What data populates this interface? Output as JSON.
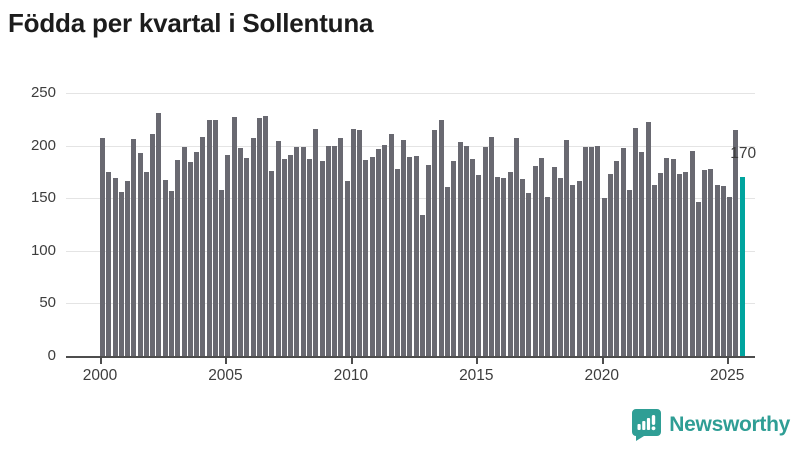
{
  "title": "Födda per kvartal i Sollentuna",
  "branding": {
    "logo_text": "Newsworthy",
    "logo_color": "#2f9e95"
  },
  "chart_data": {
    "type": "bar",
    "title": "Födda per kvartal i Sollentuna",
    "xlabel": "",
    "ylabel": "",
    "ylim": [
      0,
      250
    ],
    "grid": true,
    "y_ticks": [
      0,
      50,
      100,
      150,
      200,
      250
    ],
    "x_tick_labels": [
      "2000",
      "2005",
      "2010",
      "2015",
      "2020",
      "2025"
    ],
    "x_tick_indices": [
      0,
      20,
      40,
      60,
      80,
      100
    ],
    "bar_color": "#696971",
    "highlight_color": "#00a49e",
    "highlight_index": 102,
    "highlight_label": "170",
    "categories": [
      "2000 Q1",
      "2000 Q2",
      "2000 Q3",
      "2000 Q4",
      "2001 Q1",
      "2001 Q2",
      "2001 Q3",
      "2001 Q4",
      "2002 Q1",
      "2002 Q2",
      "2002 Q3",
      "2002 Q4",
      "2003 Q1",
      "2003 Q2",
      "2003 Q3",
      "2003 Q4",
      "2004 Q1",
      "2004 Q2",
      "2004 Q3",
      "2004 Q4",
      "2005 Q1",
      "2005 Q2",
      "2005 Q3",
      "2005 Q4",
      "2006 Q1",
      "2006 Q2",
      "2006 Q3",
      "2006 Q4",
      "2007 Q1",
      "2007 Q2",
      "2007 Q3",
      "2007 Q4",
      "2008 Q1",
      "2008 Q2",
      "2008 Q3",
      "2008 Q4",
      "2009 Q1",
      "2009 Q2",
      "2009 Q3",
      "2009 Q4",
      "2010 Q1",
      "2010 Q2",
      "2010 Q3",
      "2010 Q4",
      "2011 Q1",
      "2011 Q2",
      "2011 Q3",
      "2011 Q4",
      "2012 Q1",
      "2012 Q2",
      "2012 Q3",
      "2012 Q4",
      "2013 Q1",
      "2013 Q2",
      "2013 Q3",
      "2013 Q4",
      "2014 Q1",
      "2014 Q2",
      "2014 Q3",
      "2014 Q4",
      "2015 Q1",
      "2015 Q2",
      "2015 Q3",
      "2015 Q4",
      "2016 Q1",
      "2016 Q2",
      "2016 Q3",
      "2016 Q4",
      "2017 Q1",
      "2017 Q2",
      "2017 Q3",
      "2017 Q4",
      "2018 Q1",
      "2018 Q2",
      "2018 Q3",
      "2018 Q4",
      "2019 Q1",
      "2019 Q2",
      "2019 Q3",
      "2019 Q4",
      "2020 Q1",
      "2020 Q2",
      "2020 Q3",
      "2020 Q4",
      "2021 Q1",
      "2021 Q2",
      "2021 Q3",
      "2021 Q4",
      "2022 Q1",
      "2022 Q2",
      "2022 Q3",
      "2022 Q4",
      "2023 Q1",
      "2023 Q2",
      "2023 Q3",
      "2023 Q4",
      "2024 Q1",
      "2024 Q2",
      "2024 Q3",
      "2024 Q4",
      "2025 Q1",
      "2025 Q2",
      "2025 Q3"
    ],
    "values": [
      207,
      175,
      169,
      156,
      166,
      206,
      193,
      175,
      211,
      231,
      167,
      157,
      186,
      199,
      184,
      194,
      208,
      224,
      224,
      158,
      191,
      227,
      198,
      188,
      207,
      226,
      228,
      176,
      204,
      187,
      191,
      199,
      199,
      187,
      216,
      185,
      200,
      200,
      207,
      166,
      216,
      215,
      186,
      189,
      197,
      201,
      211,
      178,
      205,
      189,
      190,
      134,
      182,
      215,
      224,
      161,
      185,
      203,
      200,
      187,
      172,
      199,
      208,
      170,
      169,
      175,
      207,
      168,
      155,
      181,
      188,
      151,
      180,
      169,
      205,
      163,
      166,
      199,
      199,
      200,
      150,
      173,
      185,
      198,
      158,
      217,
      194,
      222,
      163,
      174,
      188,
      187,
      173,
      175,
      195,
      146,
      177,
      178,
      163,
      162,
      151,
      215,
      170
    ]
  }
}
